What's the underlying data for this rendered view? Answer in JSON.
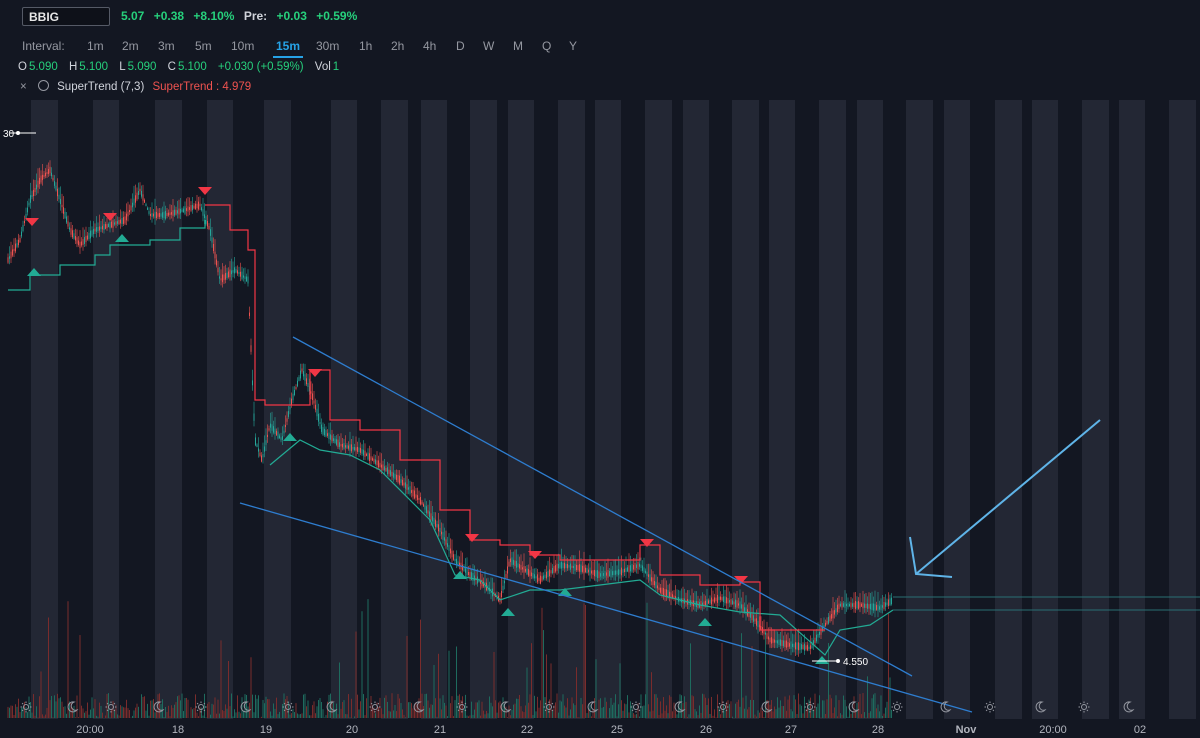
{
  "symbol": "BBIG",
  "quote": {
    "last": "5.07",
    "change": "+0.38",
    "change_pct": "+8.10%",
    "pre_label": "Pre:",
    "pre_change": "+0.03",
    "pre_change_pct": "+0.59%"
  },
  "intervals": {
    "label": "Interval:",
    "options": [
      "1m",
      "2m",
      "3m",
      "5m",
      "10m",
      "15m",
      "30m",
      "1h",
      "2h",
      "4h",
      "D",
      "W",
      "M",
      "Q",
      "Y"
    ],
    "active": "15m"
  },
  "ohlc": {
    "o_label": "O",
    "o": "5.090",
    "h_label": "H",
    "h": "5.100",
    "l_label": "L",
    "l": "5.090",
    "c_label": "C",
    "c": "5.100",
    "change": "+0.030 (+0.59%)",
    "vol_label": "Vol",
    "vol": "1"
  },
  "indicator": {
    "close": "×",
    "name": "SuperTrend (7,3)",
    "value_label": "SuperTrend : 4.979"
  },
  "annotations": {
    "low_price": "4.550",
    "left_edge_price": "30"
  },
  "x_axis": [
    "20:00",
    "18",
    "19",
    "20",
    "21",
    "22",
    "25",
    "26",
    "27",
    "28",
    "Nov",
    "20:00",
    "02"
  ],
  "colors": {
    "background": "#131722",
    "up": "#26a69a",
    "down": "#ef5350",
    "supertrend_up": "#22ab94",
    "supertrend_down": "#f23645",
    "trendline": "#2e7dcf",
    "arrow": "#5fb4e8",
    "session": "#232734"
  }
}
